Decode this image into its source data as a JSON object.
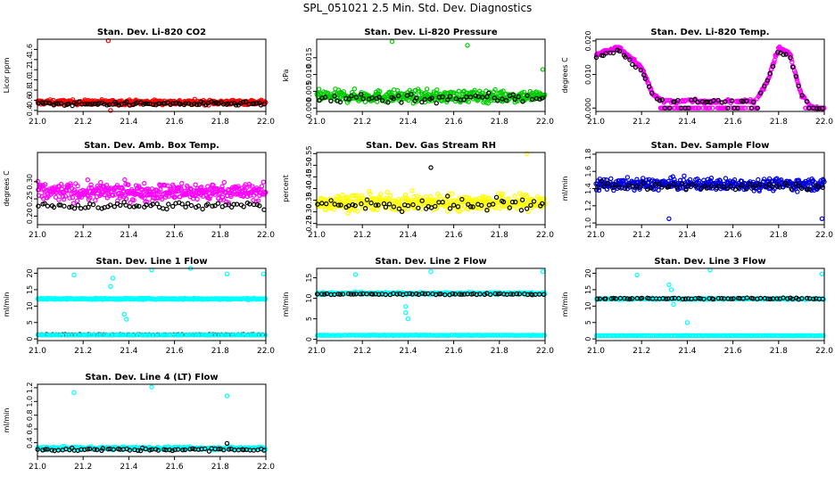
{
  "page_title": "SPL_051021  2.5 Min. Std. Dev. Diagnostics",
  "chart_data": [
    {
      "type": "scatter",
      "title": "Stan. Dev. Li-820 CO2",
      "ylabel": "Licor ppm",
      "xlabel": "",
      "xlim": [
        21.0,
        22.0
      ],
      "ylim": [
        0.38,
        1.8
      ],
      "xticks": [
        "21.0",
        "21.2",
        "21.4",
        "21.6",
        "21.8",
        "22.0"
      ],
      "yticks": [
        "0.4",
        "0.6",
        "0.8",
        "1.0",
        "1.2",
        "1.4",
        "1.6"
      ],
      "series": [
        {
          "name": "colored",
          "color": "#ff0000",
          "n": 420,
          "base": 0.56,
          "spread": 0.09,
          "outliers": [
            [
              21.31,
              1.77
            ],
            [
              21.32,
              0.4
            ]
          ]
        },
        {
          "name": "black",
          "color": "#000000",
          "n": 90,
          "base": 0.53,
          "spread": 0.07,
          "outliers": []
        }
      ]
    },
    {
      "type": "scatter",
      "title": "Stan. Dev. Li-820 Pressure",
      "ylabel": "kPa",
      "xlabel": "",
      "xlim": [
        21.0,
        22.0
      ],
      "ylim": [
        -0.001,
        0.0205
      ],
      "xticks": [
        "21.0",
        "21.2",
        "21.4",
        "21.6",
        "21.8",
        "22.0"
      ],
      "yticks": [
        "0.000",
        "0.005",
        "0.010",
        "0.015"
      ],
      "series": [
        {
          "name": "colored",
          "color": "#00cc00",
          "n": 420,
          "base": 0.0035,
          "spread": 0.0035,
          "outliers": [
            [
              21.33,
              0.0198
            ],
            [
              21.66,
              0.0187
            ],
            [
              21.99,
              0.0115
            ]
          ]
        },
        {
          "name": "black",
          "color": "#000000",
          "n": 60,
          "base": 0.003,
          "spread": 0.003,
          "outliers": []
        }
      ]
    },
    {
      "type": "scatter",
      "title": "Stan. Dev. Li-820 Temp.",
      "ylabel": "degrees C",
      "xlabel": "",
      "xlim": [
        21.0,
        22.0
      ],
      "ylim": [
        -0.001,
        0.0205
      ],
      "xticks": [
        "21.0",
        "21.2",
        "21.4",
        "21.6",
        "21.8",
        "22.0"
      ],
      "yticks": [
        "0.000",
        "0.010",
        "0.020"
      ],
      "series": [
        {
          "name": "colored",
          "color": "#ff00ff",
          "n": 380,
          "base": 0.0,
          "spread": 0.001,
          "profile": [
            [
              21.0,
              0.016
            ],
            [
              21.1,
              0.018
            ],
            [
              21.2,
              0.012
            ],
            [
              21.25,
              0.004
            ],
            [
              21.3,
              0.002
            ],
            [
              21.7,
              0.002
            ],
            [
              21.75,
              0.008
            ],
            [
              21.8,
              0.018
            ],
            [
              21.85,
              0.016
            ],
            [
              21.9,
              0.004
            ],
            [
              21.95,
              0.0
            ],
            [
              22.0,
              0.0
            ]
          ],
          "outliers": []
        },
        {
          "name": "black",
          "color": "#000000",
          "n": 70,
          "base": 0.0,
          "spread": 0.001,
          "profile": [
            [
              21.0,
              0.015
            ],
            [
              21.1,
              0.017
            ],
            [
              21.2,
              0.011
            ],
            [
              21.25,
              0.004
            ],
            [
              21.3,
              0.002
            ],
            [
              21.7,
              0.002
            ],
            [
              21.75,
              0.008
            ],
            [
              21.8,
              0.017
            ],
            [
              21.85,
              0.015
            ],
            [
              21.9,
              0.004
            ],
            [
              21.95,
              0.0
            ],
            [
              22.0,
              0.0
            ]
          ],
          "outliers": []
        }
      ]
    },
    {
      "type": "scatter",
      "title": "Stan. Dev. Amb. Box Temp.",
      "ylabel": "degrees C",
      "xlabel": "",
      "xlim": [
        21.0,
        22.0
      ],
      "ylim": [
        0.175,
        0.385
      ],
      "xticks": [
        "21.0",
        "21.2",
        "21.4",
        "21.6",
        "21.8",
        "22.0"
      ],
      "yticks": [
        "0.20",
        "0.25",
        "0.30"
      ],
      "series": [
        {
          "name": "colored",
          "color": "#ff00ff",
          "n": 420,
          "base": 0.27,
          "spread": 0.05,
          "outliers": []
        },
        {
          "name": "black",
          "color": "#000000",
          "n": 70,
          "base": 0.23,
          "spread": 0.02,
          "outliers": []
        }
      ]
    },
    {
      "type": "scatter",
      "title": "Stan. Dev. Gas Stream RH",
      "ylabel": "percent",
      "xlabel": "",
      "xlim": [
        21.0,
        22.0
      ],
      "ylim": [
        0.245,
        0.555
      ],
      "xticks": [
        "21.0",
        "21.2",
        "21.4",
        "21.6",
        "21.8",
        "22.0"
      ],
      "yticks": [
        "0.25",
        "0.30",
        "0.35",
        "0.40",
        "0.45",
        "0.50",
        "0.55"
      ],
      "series": [
        {
          "name": "colored",
          "color": "#ffff00",
          "n": 420,
          "base": 0.34,
          "spread": 0.07,
          "outliers": [
            [
              21.92,
              0.55
            ]
          ]
        },
        {
          "name": "black",
          "color": "#000000",
          "n": 60,
          "base": 0.33,
          "spread": 0.06,
          "outliers": [
            [
              21.5,
              0.49
            ]
          ]
        }
      ]
    },
    {
      "type": "scatter",
      "title": "Stan. Dev. Sample Flow",
      "ylabel": "ml/min",
      "xlabel": "",
      "xlim": [
        21.0,
        22.0
      ],
      "ylim": [
        0.98,
        1.82
      ],
      "xticks": [
        "21.0",
        "21.2",
        "21.4",
        "21.6",
        "21.8",
        "22.0"
      ],
      "yticks": [
        "1.0",
        "1.2",
        "1.4",
        "1.6",
        "1.8"
      ],
      "series": [
        {
          "name": "colored",
          "color": "#0000dd",
          "n": 420,
          "base": 1.45,
          "spread": 0.13,
          "outliers": [
            [
              21.32,
              1.05
            ],
            [
              21.99,
              1.05
            ]
          ]
        },
        {
          "name": "black",
          "color": "#000000",
          "n": 60,
          "base": 1.43,
          "spread": 0.1,
          "outliers": []
        }
      ]
    },
    {
      "type": "scatter",
      "title": "Stan. Dev. Line 1 Flow",
      "ylabel": "ml/min",
      "xlabel": "",
      "xlim": [
        21.0,
        22.0
      ],
      "ylim": [
        -0.5,
        21.5
      ],
      "xticks": [
        "21.0",
        "21.2",
        "21.4",
        "21.6",
        "21.8",
        "22.0"
      ],
      "yticks": [
        "0",
        "5",
        "10",
        "15",
        "20"
      ],
      "series": [
        {
          "name": "colored",
          "color": "#00ffff",
          "n": 380,
          "base": 12.2,
          "spread": 0.4,
          "outliers": [
            [
              21.16,
              19.5
            ],
            [
              21.33,
              18.5
            ],
            [
              21.32,
              16.0
            ],
            [
              21.38,
              7.5
            ],
            [
              21.39,
              6.0
            ],
            [
              21.5,
              21.0
            ],
            [
              21.67,
              21.5
            ],
            [
              21.83,
              19.8
            ],
            [
              21.99,
              19.8
            ]
          ]
        },
        {
          "name": "black",
          "color": "#000000",
          "n": 70,
          "base": 1.3,
          "spread": 0.15,
          "outliers": []
        },
        {
          "name": "colored-low",
          "color": "#00ffff",
          "n": 140,
          "base": 1.2,
          "spread": 0.1,
          "outliers": []
        }
      ]
    },
    {
      "type": "scatter",
      "title": "Stan. Dev. Line 2 Flow",
      "ylabel": "ml/min",
      "xlabel": "",
      "xlim": [
        21.0,
        22.0
      ],
      "ylim": [
        -0.3,
        17.3
      ],
      "xticks": [
        "21.0",
        "21.2",
        "21.4",
        "21.6",
        "21.8",
        "22.0"
      ],
      "yticks": [
        "0",
        "5",
        "10",
        "15"
      ],
      "series": [
        {
          "name": "colored",
          "color": "#00ffff",
          "n": 320,
          "base": 11.2,
          "spread": 0.5,
          "outliers": [
            [
              21.17,
              15.8
            ],
            [
              21.39,
              8.0
            ],
            [
              21.39,
              6.5
            ],
            [
              21.4,
              5.0
            ],
            [
              21.5,
              16.5
            ],
            [
              21.99,
              16.5
            ]
          ]
        },
        {
          "name": "black",
          "color": "#000000",
          "n": 70,
          "base": 11.0,
          "spread": 0.4,
          "outliers": []
        },
        {
          "name": "colored-low",
          "color": "#00ffff",
          "n": 180,
          "base": 1.0,
          "spread": 0.15,
          "outliers": []
        }
      ]
    },
    {
      "type": "scatter",
      "title": "Stan. Dev. Line 3 Flow",
      "ylabel": "ml/min",
      "xlabel": "",
      "xlim": [
        21.0,
        22.0
      ],
      "ylim": [
        -0.5,
        21.5
      ],
      "xticks": [
        "21.0",
        "21.2",
        "21.4",
        "21.6",
        "21.8",
        "22.0"
      ],
      "yticks": [
        "0",
        "5",
        "10",
        "15",
        "20"
      ],
      "series": [
        {
          "name": "colored",
          "color": "#00ffff",
          "n": 300,
          "base": 12.2,
          "spread": 0.4,
          "outliers": [
            [
              21.18,
              19.5
            ],
            [
              21.32,
              16.5
            ],
            [
              21.33,
              15.0
            ],
            [
              21.34,
              10.5
            ],
            [
              21.4,
              5.0
            ],
            [
              21.5,
              21.0
            ],
            [
              21.99,
              19.8
            ]
          ]
        },
        {
          "name": "black",
          "color": "#000000",
          "n": 70,
          "base": 12.3,
          "spread": 0.4,
          "outliers": []
        },
        {
          "name": "colored-low",
          "color": "#00ffff",
          "n": 180,
          "base": 1.0,
          "spread": 0.12,
          "outliers": []
        }
      ]
    },
    {
      "type": "scatter",
      "title": "Stan. Dev. Line 4 (LT) Flow",
      "ylabel": "ml/min",
      "xlabel": "",
      "xlim": [
        21.0,
        22.0
      ],
      "ylim": [
        0.2,
        1.25
      ],
      "xticks": [
        "21.0",
        "21.2",
        "21.4",
        "21.6",
        "21.8",
        "22.0"
      ],
      "yticks": [
        "0.4",
        "0.6",
        "0.8",
        "1.0",
        "1.2"
      ],
      "series": [
        {
          "name": "colored",
          "color": "#00ffff",
          "n": 380,
          "base": 0.32,
          "spread": 0.04,
          "outliers": [
            [
              21.16,
              1.13
            ],
            [
              21.5,
              1.21
            ],
            [
              21.83,
              1.08
            ]
          ]
        },
        {
          "name": "black",
          "color": "#000000",
          "n": 70,
          "base": 0.3,
          "spread": 0.04,
          "outliers": [
            [
              21.83,
              0.39
            ]
          ]
        }
      ]
    }
  ]
}
